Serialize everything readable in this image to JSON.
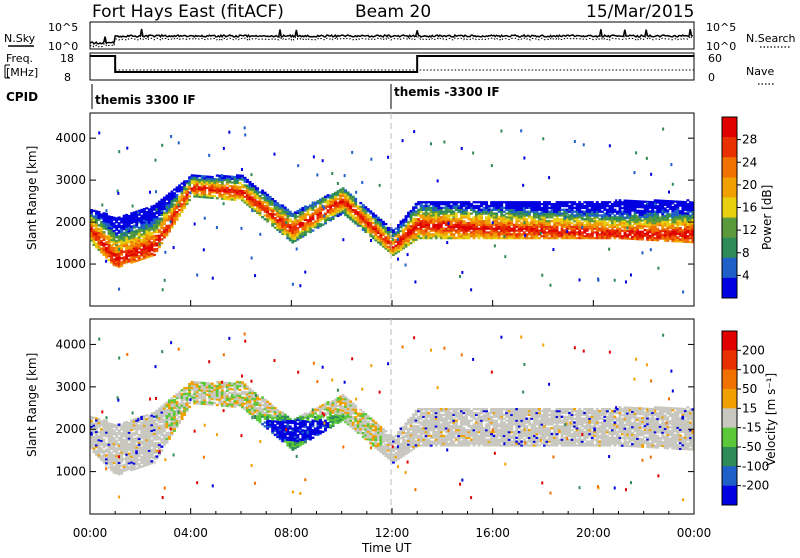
{
  "header": {
    "radar": "Fort Hays East (fitACF)",
    "beam": "Beam 20",
    "date": "15/Mar/2015"
  },
  "strips": {
    "nsky_label": "N.Sky",
    "nsearch_label": "N.Search",
    "noise_ticks": [
      "10^5",
      "10^0"
    ],
    "freq_label_top": "Freq.",
    "freq_label_bottom": "[MHz]",
    "freq_ticks": [
      "18",
      "8"
    ],
    "nave_ticks": [
      "60",
      "0"
    ],
    "nave_label": "Nave",
    "cpid_label": "CPID",
    "cpid_segments": [
      {
        "label": "themis 3300 IF",
        "start_hour": 0
      },
      {
        "label": "themis -3300 IF",
        "start_hour": 12
      }
    ]
  },
  "chart_data": [
    {
      "type": "heatmap",
      "panel": "power",
      "ylabel": "Slant Range [km]",
      "ylim": [
        0,
        4600
      ],
      "yticks": [
        "1000",
        "2000",
        "3000",
        "4000"
      ],
      "xlim": [
        0,
        24
      ],
      "colorbar_label": "Power [dB]",
      "colorbar_ticks": [
        "28",
        "24",
        "20",
        "16",
        "12",
        "8",
        "4"
      ],
      "colors": [
        "#0000e0",
        "#1f5fc8",
        "#2e8b57",
        "#5a9a3c",
        "#e8d010",
        "#f0a000",
        "#f07000",
        "#e83000",
        "#e00000"
      ],
      "echo_band_km": [
        {
          "hour": 0.0,
          "low": 1500,
          "high": 2300,
          "peak": 1800
        },
        {
          "hour": 1.0,
          "low": 900,
          "high": 2100,
          "peak": 1100
        },
        {
          "hour": 2.5,
          "low": 1200,
          "high": 2400,
          "peak": 1400
        },
        {
          "hour": 4.0,
          "low": 2600,
          "high": 3100,
          "peak": 2800
        },
        {
          "hour": 6.0,
          "low": 2500,
          "high": 3100,
          "peak": 2700
        },
        {
          "hour": 8.0,
          "low": 1500,
          "high": 2200,
          "peak": 1800
        },
        {
          "hour": 10.0,
          "low": 2200,
          "high": 2800,
          "peak": 2500
        },
        {
          "hour": 12.0,
          "low": 1200,
          "high": 1800,
          "peak": 1400
        },
        {
          "hour": 13.0,
          "low": 1600,
          "high": 2500,
          "peak": 1900
        },
        {
          "hour": 17.0,
          "low": 1600,
          "high": 2500,
          "peak": 1800
        },
        {
          "hour": 21.0,
          "low": 1600,
          "high": 2500,
          "peak": 1700
        },
        {
          "hour": 24.0,
          "low": 1500,
          "high": 2500,
          "peak": 1700
        }
      ]
    },
    {
      "type": "heatmap",
      "panel": "velocity",
      "ylabel": "Slant Range [km]",
      "ylim": [
        0,
        4600
      ],
      "yticks": [
        "1000",
        "2000",
        "3000",
        "4000"
      ],
      "xlim": [
        0,
        24
      ],
      "xticks": [
        "00:00",
        "04:00",
        "08:00",
        "12:00",
        "16:00",
        "20:00",
        "00:00"
      ],
      "xlabel": "Time UT",
      "colorbar_label": "Velocity [m s⁻¹]",
      "colorbar_ticks": [
        "200",
        "100",
        "50",
        "15",
        "-15",
        "-50",
        "-100",
        "-200"
      ],
      "colors": [
        "#0000e0",
        "#1f5fc8",
        "#2e8b57",
        "#5ac838",
        "#c8c8c0",
        "#f0a000",
        "#f07000",
        "#e83000",
        "#e00000"
      ]
    }
  ]
}
